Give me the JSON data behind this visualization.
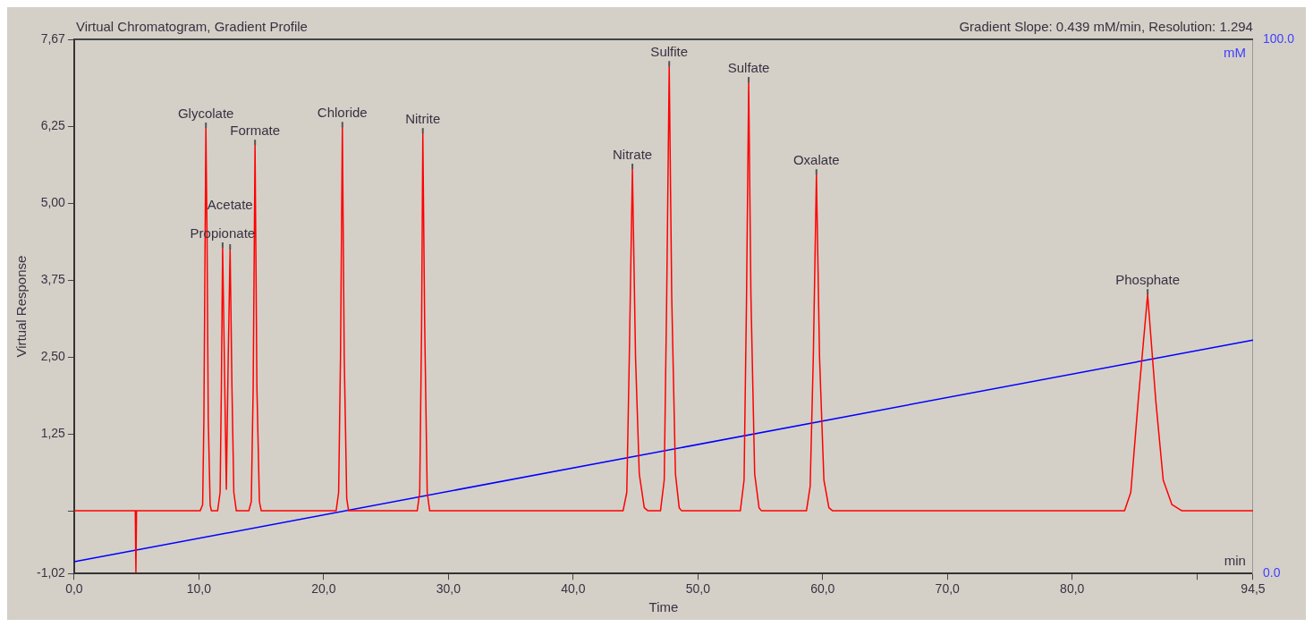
{
  "chart_data": {
    "type": "line",
    "title": "Virtual Chromatogram, Gradient Profile",
    "subtitle": "Gradient Slope: 0.439 mM/min, Resolution: 1.294",
    "xlabel": "Time",
    "ylabel": "Virtual Response",
    "y2label": "mM",
    "xlim": [
      0,
      94.5
    ],
    "xticks": [
      {
        "value": 0,
        "label": "0,0"
      },
      {
        "value": 10,
        "label": "10,0"
      },
      {
        "value": 20,
        "label": "20,0"
      },
      {
        "value": 30,
        "label": "30,0"
      },
      {
        "value": 40,
        "label": "40,0"
      },
      {
        "value": 50,
        "label": "50,0"
      },
      {
        "value": 60,
        "label": "60,0"
      },
      {
        "value": 70,
        "label": "70,0"
      },
      {
        "value": 80,
        "label": "80,0"
      },
      {
        "value": 90,
        "label": null
      },
      {
        "value": 94.5,
        "label": "94,5"
      }
    ],
    "ylim": [
      -1.02,
      7.67
    ],
    "yticks": [
      {
        "value": -1.02,
        "label": "-1,02"
      },
      {
        "value": 0,
        "label": null
      },
      {
        "value": 1.25,
        "label": "1,25"
      },
      {
        "value": 2.5,
        "label": "2,50"
      },
      {
        "value": 3.75,
        "label": "3,75"
      },
      {
        "value": 5,
        "label": "5,00"
      },
      {
        "value": 6.25,
        "label": "6,25"
      },
      {
        "value": 7.67,
        "label": "7,67"
      }
    ],
    "y2lim": [
      0,
      100
    ],
    "y2ticks": [
      {
        "value": 0,
        "label": "0.0"
      },
      {
        "value": 100,
        "label": "100.0"
      }
    ],
    "grid": false,
    "legend": false,
    "marker": "none",
    "line_style": "solid",
    "series": [
      {
        "color": "#ff0000",
        "x": [
          0,
          4.9,
          4.95,
          5.0,
          10.1,
          10.3,
          10.4,
          10.5,
          10.56,
          10.65,
          10.75,
          10.9,
          11.0,
          11.5,
          11.7,
          11.8,
          11.9,
          12.0,
          12.2,
          12.35,
          12.5,
          12.65,
          12.8,
          13.0,
          14.0,
          14.2,
          14.35,
          14.5,
          14.65,
          14.85,
          15.0,
          21.0,
          21.2,
          21.35,
          21.5,
          21.65,
          21.85,
          22.0,
          27.5,
          27.7,
          27.85,
          27.95,
          28.1,
          28.3,
          28.5,
          44.0,
          44.3,
          44.5,
          44.75,
          45.0,
          45.3,
          45.7,
          46.0,
          47.0,
          47.3,
          47.5,
          47.7,
          47.9,
          48.2,
          48.5,
          48.7,
          53.4,
          53.7,
          53.9,
          54.07,
          54.25,
          54.55,
          54.9,
          55.1,
          58.7,
          59.0,
          59.25,
          59.5,
          59.75,
          60.1,
          60.5,
          60.8,
          84.2,
          84.7,
          85.3,
          86.05,
          86.7,
          87.3,
          88.0,
          88.8,
          94.5
        ],
        "values": [
          0,
          0,
          -1.0,
          0,
          0,
          0.1,
          1.5,
          4.5,
          6.23,
          4.5,
          1.5,
          0.1,
          0,
          0,
          0.3,
          2.0,
          4.28,
          3.0,
          0.35,
          2.5,
          4.25,
          2.0,
          0.3,
          0,
          0,
          0.15,
          2.0,
          5.95,
          2.0,
          0.15,
          0,
          0,
          0.3,
          2.5,
          6.24,
          2.5,
          0.2,
          0,
          0,
          0.3,
          3.0,
          6.14,
          3.0,
          0.3,
          0,
          0,
          0.3,
          2.5,
          5.56,
          2.5,
          0.6,
          0.05,
          0,
          0,
          0.5,
          3.5,
          7.23,
          3.5,
          0.6,
          0.05,
          0,
          0,
          0.5,
          3.5,
          6.97,
          3.5,
          0.6,
          0.05,
          0,
          0,
          0.4,
          2.5,
          5.47,
          2.5,
          0.5,
          0.05,
          0,
          0,
          0.3,
          1.8,
          3.52,
          1.8,
          0.5,
          0.1,
          0,
          0
        ]
      },
      {
        "color": "#0000ff",
        "axis": "y2",
        "x": [
          0,
          94.5
        ],
        "values": [
          2.2,
          43.7
        ]
      }
    ],
    "annotations": [
      {
        "text": "Glycolate",
        "x": 10.56,
        "y": 6.23
      },
      {
        "text": "Propionate",
        "x": 11.9,
        "y": 4.28
      },
      {
        "text": "Acetate",
        "x": 12.5,
        "y": 4.25
      },
      {
        "text": "Formate",
        "x": 14.5,
        "y": 5.95
      },
      {
        "text": "Chloride",
        "x": 21.5,
        "y": 6.24
      },
      {
        "text": "Nitrite",
        "x": 27.95,
        "y": 6.14
      },
      {
        "text": "Nitrate",
        "x": 44.75,
        "y": 5.56
      },
      {
        "text": "Sulfite",
        "x": 47.7,
        "y": 7.23
      },
      {
        "text": "Sulfate",
        "x": 54.07,
        "y": 6.97
      },
      {
        "text": "Oxalate",
        "x": 59.5,
        "y": 5.47
      },
      {
        "text": "Phosphate",
        "x": 86.05,
        "y": 3.52
      },
      "min"
    ]
  }
}
